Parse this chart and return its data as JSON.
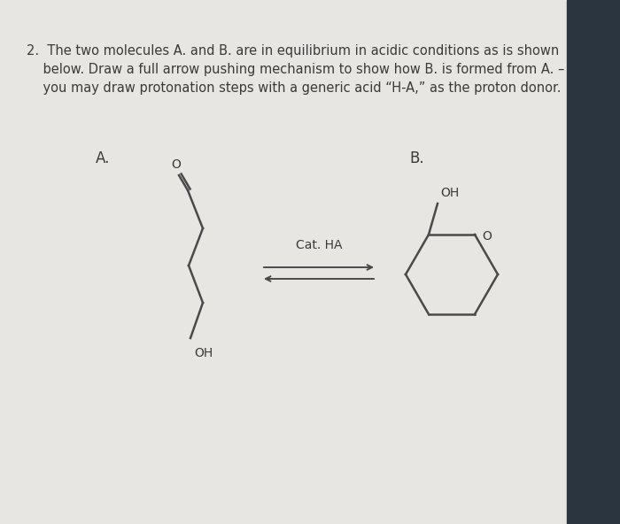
{
  "background_color": "#dcdad7",
  "page_color": "#e8e6e2",
  "text_color": "#3a3a3a",
  "line_color": "#4a4a4a",
  "label_A": "A.",
  "label_B": "B.",
  "cat_label": "Cat. HA",
  "font_size_title": 10.5,
  "font_size_labels": 12,
  "font_size_atoms": 10,
  "title_line1": "2.  The two molecules A. and B. are in equilibrium in acidic conditions as is shown",
  "title_line2": "    below. Draw a full arrow pushing mechanism to show how B. is formed from A. –",
  "title_line3": "    you may draw protonation steps with a generic acid “H-A,” as the proton donor."
}
